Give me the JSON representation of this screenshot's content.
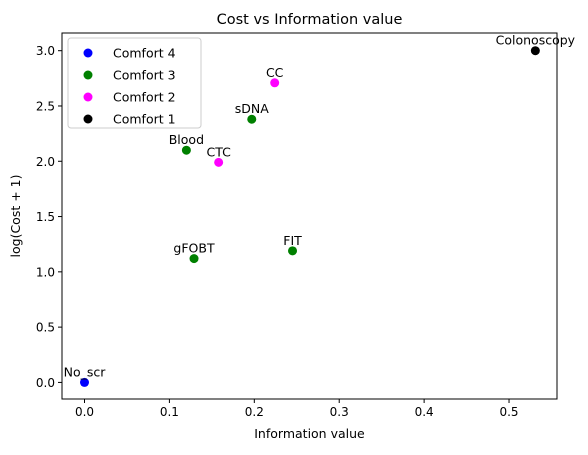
{
  "chart_data": {
    "type": "scatter",
    "title": "Cost vs Information value",
    "xlabel": "Information value",
    "ylabel": "log(Cost + 1)",
    "xlim": [
      -0.0265,
      0.5565
    ],
    "ylim": [
      -0.15,
      3.16
    ],
    "xticks": [
      0.0,
      0.1,
      0.2,
      0.3,
      0.4,
      0.5
    ],
    "xtick_labels": [
      "0.0",
      "0.1",
      "0.2",
      "0.3",
      "0.4",
      "0.5"
    ],
    "yticks": [
      0.0,
      0.5,
      1.0,
      1.5,
      2.0,
      2.5,
      3.0
    ],
    "ytick_labels": [
      "0.0",
      "0.5",
      "1.0",
      "1.5",
      "2.0",
      "2.5",
      "3.0"
    ],
    "grid": false,
    "legend_position": "top-left",
    "legend": [
      {
        "label": "Comfort 4",
        "color": "#0000ff"
      },
      {
        "label": "Comfort 3",
        "color": "#008000"
      },
      {
        "label": "Comfort 2",
        "color": "#ff00ff"
      },
      {
        "label": "Comfort 1",
        "color": "#000000"
      }
    ],
    "points": [
      {
        "label": "No_scr",
        "x": 0.0,
        "y": 0.0,
        "color": "#0000ff"
      },
      {
        "label": "Blood",
        "x": 0.12,
        "y": 2.1,
        "color": "#008000"
      },
      {
        "label": "sDNA",
        "x": 0.197,
        "y": 2.38,
        "color": "#008000"
      },
      {
        "label": "gFOBT",
        "x": 0.129,
        "y": 1.12,
        "color": "#008000"
      },
      {
        "label": "FIT",
        "x": 0.245,
        "y": 1.19,
        "color": "#008000"
      },
      {
        "label": "CTC",
        "x": 0.158,
        "y": 1.99,
        "color": "#ff00ff"
      },
      {
        "label": "CC",
        "x": 0.224,
        "y": 2.71,
        "color": "#ff00ff"
      },
      {
        "label": "Colonoscopy",
        "x": 0.531,
        "y": 3.0,
        "color": "#000000"
      }
    ]
  }
}
